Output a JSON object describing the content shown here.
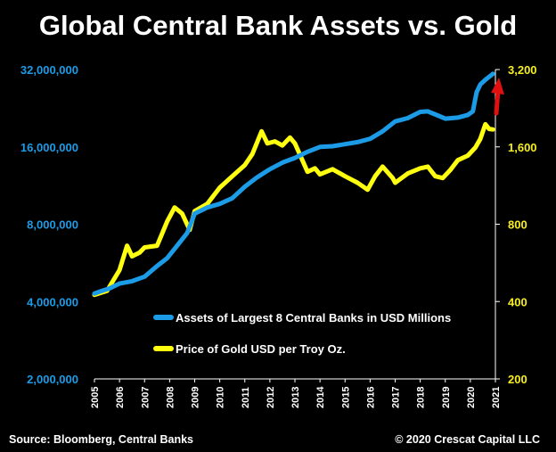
{
  "chart_data": {
    "type": "line",
    "title": "Global Central Bank Assets vs. Gold",
    "source": "Source: Bloomberg, Central Banks",
    "copyright": "© 2020 Crescat Capital LLC",
    "colors": {
      "background": "#000000",
      "left_axis": "#1c9be6",
      "right_axis": "#f6ee1e",
      "assets": "#1c9be6",
      "gold": "#ffff10",
      "arrow": "#e01010",
      "text": "#ffffff"
    },
    "x_ticks": [
      "2005",
      "2006",
      "2007",
      "2008",
      "2009",
      "2010",
      "2011",
      "2012",
      "2013",
      "2014",
      "2015",
      "2016",
      "2017",
      "2018",
      "2019",
      "2020",
      "2021"
    ],
    "xlim": [
      2005,
      2021
    ],
    "left_axis": {
      "scale": "log",
      "lim": [
        2000000,
        32000000
      ],
      "ticks": [
        2000000,
        4000000,
        8000000,
        16000000,
        32000000
      ],
      "tick_labels": [
        "2,000,000",
        "4,000,000",
        "8,000,000",
        "16,000,000",
        "32,000,000"
      ]
    },
    "right_axis": {
      "scale": "log",
      "lim": [
        200,
        3200
      ],
      "ticks": [
        200,
        400,
        800,
        1600,
        3200
      ],
      "tick_labels": [
        "200",
        "400",
        "800",
        "1,600",
        "3,200"
      ]
    },
    "series": [
      {
        "name": "Assets of Largest 8 Central Banks in USD Millions",
        "axis": "left",
        "x": [
          2005.0,
          2005.3,
          2005.6,
          2006.0,
          2006.5,
          2007.0,
          2007.5,
          2007.9,
          2008.3,
          2008.7,
          2009.0,
          2009.5,
          2010.0,
          2010.5,
          2011.0,
          2011.5,
          2012.0,
          2012.5,
          2013.0,
          2013.5,
          2014.0,
          2014.5,
          2015.0,
          2015.5,
          2016.0,
          2016.5,
          2017.0,
          2017.5,
          2018.0,
          2018.3,
          2018.7,
          2019.0,
          2019.5,
          2019.9,
          2020.1,
          2020.25,
          2020.4,
          2020.6,
          2020.9
        ],
        "y": [
          4300000,
          4400000,
          4500000,
          4700000,
          4800000,
          5000000,
          5500000,
          5900000,
          6600000,
          7400000,
          8800000,
          9300000,
          9600000,
          10100000,
          11200000,
          12200000,
          13100000,
          13900000,
          14500000,
          15300000,
          16000000,
          16100000,
          16400000,
          16700000,
          17200000,
          18400000,
          20100000,
          20700000,
          21900000,
          22000000,
          21200000,
          20600000,
          20800000,
          21300000,
          22000000,
          26100000,
          28000000,
          29200000,
          30800000
        ]
      },
      {
        "name": "Price of Gold USD per Troy Oz.",
        "axis": "right",
        "x": [
          2005.0,
          2005.5,
          2006.0,
          2006.3,
          2006.5,
          2006.8,
          2007.0,
          2007.5,
          2007.9,
          2008.2,
          2008.5,
          2008.8,
          2009.0,
          2009.5,
          2010.0,
          2010.5,
          2011.0,
          2011.3,
          2011.67,
          2011.9,
          2012.2,
          2012.5,
          2012.8,
          2013.0,
          2013.5,
          2013.8,
          2014.0,
          2014.5,
          2015.0,
          2015.5,
          2015.9,
          2016.2,
          2016.5,
          2016.9,
          2017.0,
          2017.5,
          2018.0,
          2018.3,
          2018.6,
          2018.9,
          2019.2,
          2019.5,
          2019.9,
          2020.2,
          2020.4,
          2020.6,
          2020.75,
          2020.9
        ],
        "y": [
          425,
          440,
          530,
          660,
          600,
          620,
          650,
          660,
          820,
          930,
          880,
          760,
          900,
          960,
          1110,
          1230,
          1360,
          1500,
          1840,
          1650,
          1680,
          1620,
          1740,
          1650,
          1280,
          1320,
          1250,
          1310,
          1230,
          1160,
          1090,
          1230,
          1340,
          1210,
          1160,
          1260,
          1320,
          1340,
          1230,
          1210,
          1300,
          1420,
          1480,
          1590,
          1720,
          1960,
          1880,
          1870
        ]
      }
    ],
    "annotations": [
      {
        "type": "arrow",
        "direction": "up",
        "color": "red",
        "at_x": 2020.95
      }
    ]
  }
}
